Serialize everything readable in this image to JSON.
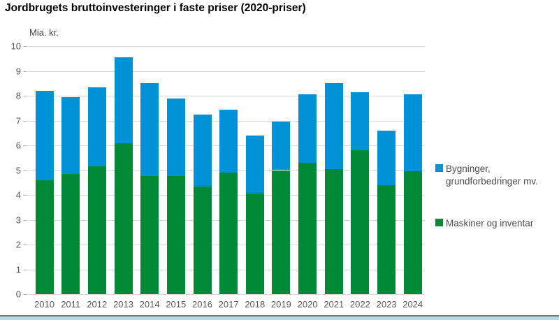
{
  "title": "Jordbrugets bruttoinvesteringer i faste priser (2020-priser)",
  "y_axis_unit": "Mia. kr.",
  "colors": {
    "bar_blue": "#0092d6",
    "bar_green": "#008a38",
    "gridline": "#d9d9d9",
    "axis_text": "#595959",
    "title_text": "#000000",
    "legend_text": "#4d4d4d",
    "footer_dark": "#5e7e8e",
    "footer_light": "#c2d5dd"
  },
  "chart_data": {
    "type": "bar",
    "stacked": true,
    "title": "Jordbrugets bruttoinvesteringer i faste priser (2020-priser)",
    "ylabel": "Mia. kr.",
    "xlabel": "",
    "ylim": [
      0,
      10
    ],
    "y_tick_labels": [
      "0",
      "1",
      "2",
      "3",
      "4",
      "5",
      "6",
      "7",
      "8",
      "9",
      "10"
    ],
    "grid": true,
    "legend_position": "right",
    "categories": [
      "2010",
      "2011",
      "2012",
      "2013",
      "2014",
      "2015",
      "2016",
      "2017",
      "2018",
      "2019",
      "2020",
      "2021",
      "2022",
      "2023",
      "2024"
    ],
    "series": [
      {
        "name": "Maskiner og inventar",
        "color": "#008a38",
        "values": [
          4.6,
          4.85,
          5.15,
          6.1,
          4.75,
          4.75,
          4.35,
          4.9,
          4.05,
          5.0,
          5.3,
          5.05,
          5.8,
          4.4,
          4.95
        ]
      },
      {
        "name": "Bygninger, grundforbedringer mv.",
        "color": "#0092d6",
        "values": [
          3.6,
          3.1,
          3.2,
          3.45,
          3.75,
          3.15,
          2.9,
          2.55,
          2.35,
          1.95,
          2.75,
          3.45,
          2.35,
          2.2,
          3.1
        ]
      }
    ],
    "totals": [
      8.2,
      7.95,
      8.35,
      9.55,
      8.5,
      7.9,
      7.25,
      7.45,
      6.4,
      6.95,
      8.05,
      8.5,
      8.15,
      6.6,
      8.05
    ]
  },
  "legend": {
    "items": [
      {
        "line1": "Bygninger,",
        "line2": "grundforbedringer mv.",
        "color": "#0092d6"
      },
      {
        "line1": "Maskiner og inventar",
        "line2": "",
        "color": "#008a38"
      }
    ]
  }
}
